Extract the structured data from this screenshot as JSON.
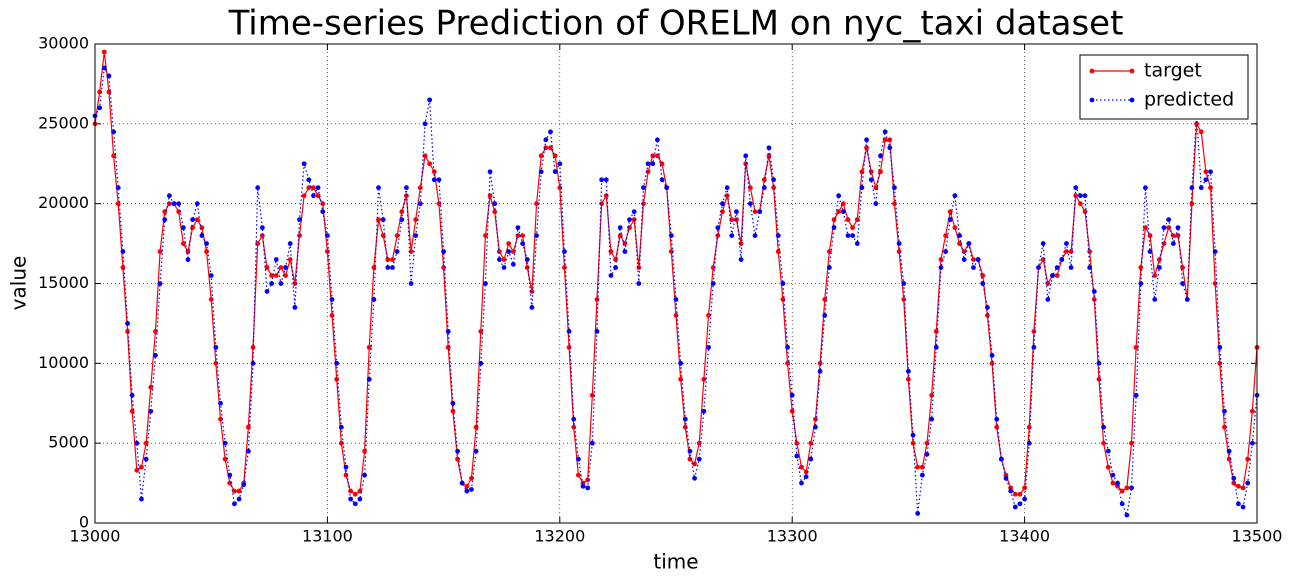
{
  "chart_data": {
    "type": "line",
    "title": "Time-series Prediction of ORELM on nyc_taxi dataset",
    "x_label": "time",
    "y_label": "value",
    "xlim": [
      13000,
      13500
    ],
    "xticks": [
      13000,
      13100,
      13200,
      13300,
      13400,
      13500
    ],
    "ylim": [
      0,
      30000
    ],
    "yticks": [
      0,
      5000,
      10000,
      15000,
      20000,
      25000,
      30000
    ],
    "grid": true,
    "legend": "upper right",
    "x": [
      13000,
      13002,
      13004,
      13006,
      13008,
      13010,
      13012,
      13014,
      13016,
      13018,
      13020,
      13022,
      13024,
      13026,
      13028,
      13030,
      13032,
      13034,
      13036,
      13038,
      13040,
      13042,
      13044,
      13046,
      13048,
      13050,
      13052,
      13054,
      13056,
      13058,
      13060,
      13062,
      13064,
      13066,
      13068,
      13070,
      13072,
      13074,
      13076,
      13078,
      13080,
      13082,
      13084,
      13086,
      13088,
      13090,
      13092,
      13094,
      13096,
      13098,
      13100,
      13102,
      13104,
      13106,
      13108,
      13110,
      13112,
      13114,
      13116,
      13118,
      13120,
      13122,
      13124,
      13126,
      13128,
      13130,
      13132,
      13134,
      13136,
      13138,
      13140,
      13142,
      13144,
      13146,
      13148,
      13150,
      13152,
      13154,
      13156,
      13158,
      13160,
      13162,
      13164,
      13166,
      13168,
      13170,
      13172,
      13174,
      13176,
      13178,
      13180,
      13182,
      13184,
      13186,
      13188,
      13190,
      13192,
      13194,
      13196,
      13198,
      13200,
      13202,
      13204,
      13206,
      13208,
      13210,
      13212,
      13214,
      13216,
      13218,
      13220,
      13222,
      13224,
      13226,
      13228,
      13230,
      13232,
      13234,
      13236,
      13238,
      13240,
      13242,
      13244,
      13246,
      13248,
      13250,
      13252,
      13254,
      13256,
      13258,
      13260,
      13262,
      13264,
      13266,
      13268,
      13270,
      13272,
      13274,
      13276,
      13278,
      13280,
      13282,
      13284,
      13286,
      13288,
      13290,
      13292,
      13294,
      13296,
      13298,
      13300,
      13302,
      13304,
      13306,
      13308,
      13310,
      13312,
      13314,
      13316,
      13318,
      13320,
      13322,
      13324,
      13326,
      13328,
      13330,
      13332,
      13334,
      13336,
      13338,
      13340,
      13342,
      13344,
      13346,
      13348,
      13350,
      13352,
      13354,
      13356,
      13358,
      13360,
      13362,
      13364,
      13366,
      13368,
      13370,
      13372,
      13374,
      13376,
      13378,
      13380,
      13382,
      13384,
      13386,
      13388,
      13390,
      13392,
      13394,
      13396,
      13398,
      13400,
      13402,
      13404,
      13406,
      13408,
      13410,
      13412,
      13414,
      13416,
      13418,
      13420,
      13422,
      13424,
      13426,
      13428,
      13430,
      13432,
      13434,
      13436,
      13438,
      13440,
      13442,
      13444,
      13446,
      13448,
      13450,
      13452,
      13454,
      13456,
      13458,
      13460,
      13462,
      13464,
      13466,
      13468,
      13470,
      13472,
      13474,
      13476,
      13478,
      13480,
      13482,
      13484,
      13486,
      13488,
      13490,
      13492,
      13494,
      13496,
      13498,
      13500
    ],
    "series": [
      {
        "name": "target",
        "color": "#ff0000",
        "style": "solid",
        "values": [
          25000,
          27000,
          29500,
          27000,
          23000,
          20000,
          16000,
          12000,
          7000,
          3300,
          3500,
          5000,
          8500,
          12000,
          17000,
          19500,
          20000,
          20000,
          19500,
          17500,
          17000,
          18500,
          19000,
          18500,
          17000,
          14000,
          10000,
          6500,
          4000,
          2500,
          2000,
          2000,
          2500,
          6000,
          11000,
          17500,
          18000,
          16000,
          15500,
          15500,
          16000,
          15500,
          16500,
          15000,
          18000,
          20500,
          21000,
          21000,
          20500,
          20000,
          17000,
          13000,
          9000,
          5000,
          3000,
          2000,
          1800,
          2000,
          4500,
          11000,
          16000,
          19000,
          18000,
          16500,
          16500,
          18000,
          19500,
          20500,
          17000,
          19000,
          21000,
          23000,
          22500,
          22000,
          20000,
          16000,
          11000,
          7000,
          4000,
          2500,
          2300,
          2800,
          6000,
          12000,
          18000,
          20500,
          19500,
          17000,
          16500,
          17500,
          17000,
          18000,
          18000,
          16000,
          14500,
          20000,
          23000,
          23500,
          23500,
          23000,
          21000,
          16000,
          11000,
          6000,
          3000,
          2500,
          2700,
          8000,
          14000,
          20000,
          20500,
          17000,
          16500,
          18000,
          17500,
          18500,
          19000,
          16000,
          20000,
          22000,
          23000,
          23000,
          22500,
          21000,
          17000,
          13000,
          9000,
          6000,
          4000,
          3700,
          5000,
          9000,
          13000,
          16000,
          18000,
          19500,
          20500,
          19000,
          19000,
          17500,
          22500,
          21000,
          19500,
          19500,
          21500,
          23000,
          21000,
          17000,
          14000,
          10000,
          7000,
          5000,
          3500,
          3200,
          5000,
          6500,
          10000,
          14000,
          17000,
          19000,
          19500,
          20000,
          19000,
          18500,
          19000,
          22000,
          23500,
          22000,
          21000,
          22000,
          24000,
          24000,
          20000,
          17000,
          14000,
          9000,
          5000,
          3500,
          3500,
          5000,
          8000,
          12000,
          16500,
          18000,
          19500,
          18500,
          17500,
          17000,
          17500,
          16500,
          16500,
          15500,
          13000,
          10000,
          6000,
          4000,
          3000,
          2200,
          1800,
          1800,
          2200,
          6000,
          12000,
          16000,
          16500,
          15000,
          15500,
          15500,
          16500,
          17000,
          17000,
          20500,
          20000,
          19500,
          17000,
          14000,
          9000,
          5000,
          3500,
          2500,
          2300,
          2000,
          2200,
          5000,
          11000,
          16000,
          18500,
          18000,
          15500,
          16500,
          17500,
          18500,
          18000,
          18000,
          16000,
          14000,
          20000,
          25000,
          24500,
          22000,
          21000,
          15000,
          10000,
          6000,
          4000,
          2500,
          2300,
          2200,
          4000,
          7000,
          11000
        ]
      },
      {
        "name": "predicted",
        "color": "#0000ff",
        "style": "dotted",
        "values": [
          25500,
          26000,
          28500,
          28000,
          24500,
          21000,
          17000,
          12500,
          8000,
          5000,
          1500,
          4000,
          7000,
          10500,
          15000,
          19000,
          20500,
          20000,
          20000,
          18500,
          16500,
          19000,
          20000,
          18000,
          17500,
          15500,
          11000,
          7500,
          5000,
          3000,
          1200,
          1500,
          2400,
          4500,
          10000,
          21000,
          18500,
          14500,
          15000,
          16500,
          15000,
          16000,
          17500,
          13500,
          19000,
          22500,
          21500,
          20500,
          21000,
          19500,
          18000,
          14000,
          10000,
          6000,
          3500,
          1500,
          1200,
          1500,
          3000,
          9000,
          14000,
          21000,
          19000,
          16000,
          16000,
          17000,
          19000,
          21000,
          15000,
          18000,
          20000,
          25000,
          26500,
          21500,
          21500,
          17000,
          12000,
          7500,
          4500,
          2500,
          2000,
          2100,
          4500,
          10000,
          15000,
          22000,
          20000,
          16500,
          16000,
          17000,
          16200,
          18500,
          17500,
          16500,
          13500,
          18000,
          22000,
          24000,
          24500,
          22000,
          22500,
          17000,
          12000,
          6500,
          4000,
          2300,
          2200,
          5000,
          12000,
          21500,
          21500,
          15500,
          16000,
          18500,
          17000,
          19000,
          19500,
          15000,
          21000,
          22500,
          22500,
          24000,
          21500,
          21000,
          18000,
          14000,
          10000,
          6500,
          4500,
          2800,
          4000,
          7000,
          11000,
          15000,
          18500,
          20000,
          21000,
          18000,
          19500,
          16500,
          23000,
          20000,
          18000,
          19500,
          21000,
          23500,
          21500,
          18000,
          15000,
          11000,
          8000,
          4200,
          2500,
          2900,
          4000,
          6000,
          9500,
          13000,
          16000,
          18500,
          20500,
          19500,
          18000,
          18000,
          17500,
          21000,
          24000,
          21500,
          20000,
          23000,
          24500,
          23500,
          21000,
          17500,
          15000,
          9500,
          5500,
          600,
          3000,
          4300,
          6500,
          11000,
          16000,
          17000,
          19000,
          20500,
          18000,
          16500,
          17500,
          16000,
          16500,
          15000,
          13500,
          10500,
          6500,
          4000,
          2800,
          2000,
          1000,
          1200,
          1500,
          5000,
          11000,
          16000,
          17500,
          14000,
          15500,
          16000,
          16500,
          17500,
          16000,
          21000,
          20500,
          20500,
          16000,
          14500,
          10000,
          6000,
          4500,
          3000,
          2500,
          1200,
          500,
          2200,
          8000,
          15000,
          21000,
          17000,
          14000,
          16000,
          18500,
          19000,
          17500,
          18500,
          15000,
          14000,
          21000,
          25500,
          21000,
          21500,
          22000,
          17000,
          11000,
          7000,
          4500,
          2800,
          1200,
          1000,
          2500,
          5000,
          8000
        ]
      }
    ]
  }
}
